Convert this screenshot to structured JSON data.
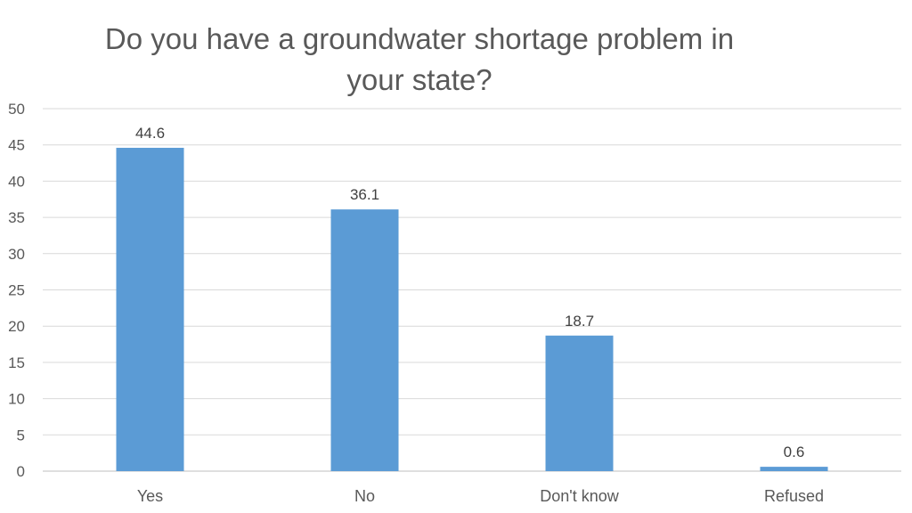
{
  "chart_data": {
    "type": "bar",
    "title": "Do you have a groundwater shortage problem in your state?",
    "title_lines": [
      "Do you have a groundwater shortage problem in",
      "your state?"
    ],
    "categories": [
      "Yes",
      "No",
      "Don't know",
      "Refused"
    ],
    "values": [
      44.6,
      36.1,
      18.7,
      0.6
    ],
    "data_labels": [
      "44.6",
      "36.1",
      "18.7",
      "0.6"
    ],
    "xlabel": "",
    "ylabel": "",
    "ylim": [
      0,
      50
    ],
    "yticks": [
      "0",
      "5",
      "10",
      "15",
      "20",
      "25",
      "30",
      "35",
      "40",
      "45",
      "50"
    ],
    "grid": true,
    "legend": "none",
    "colors": {
      "bar": "#5B9BD5",
      "grid": "#D9D9D9",
      "text": "#595959"
    }
  }
}
